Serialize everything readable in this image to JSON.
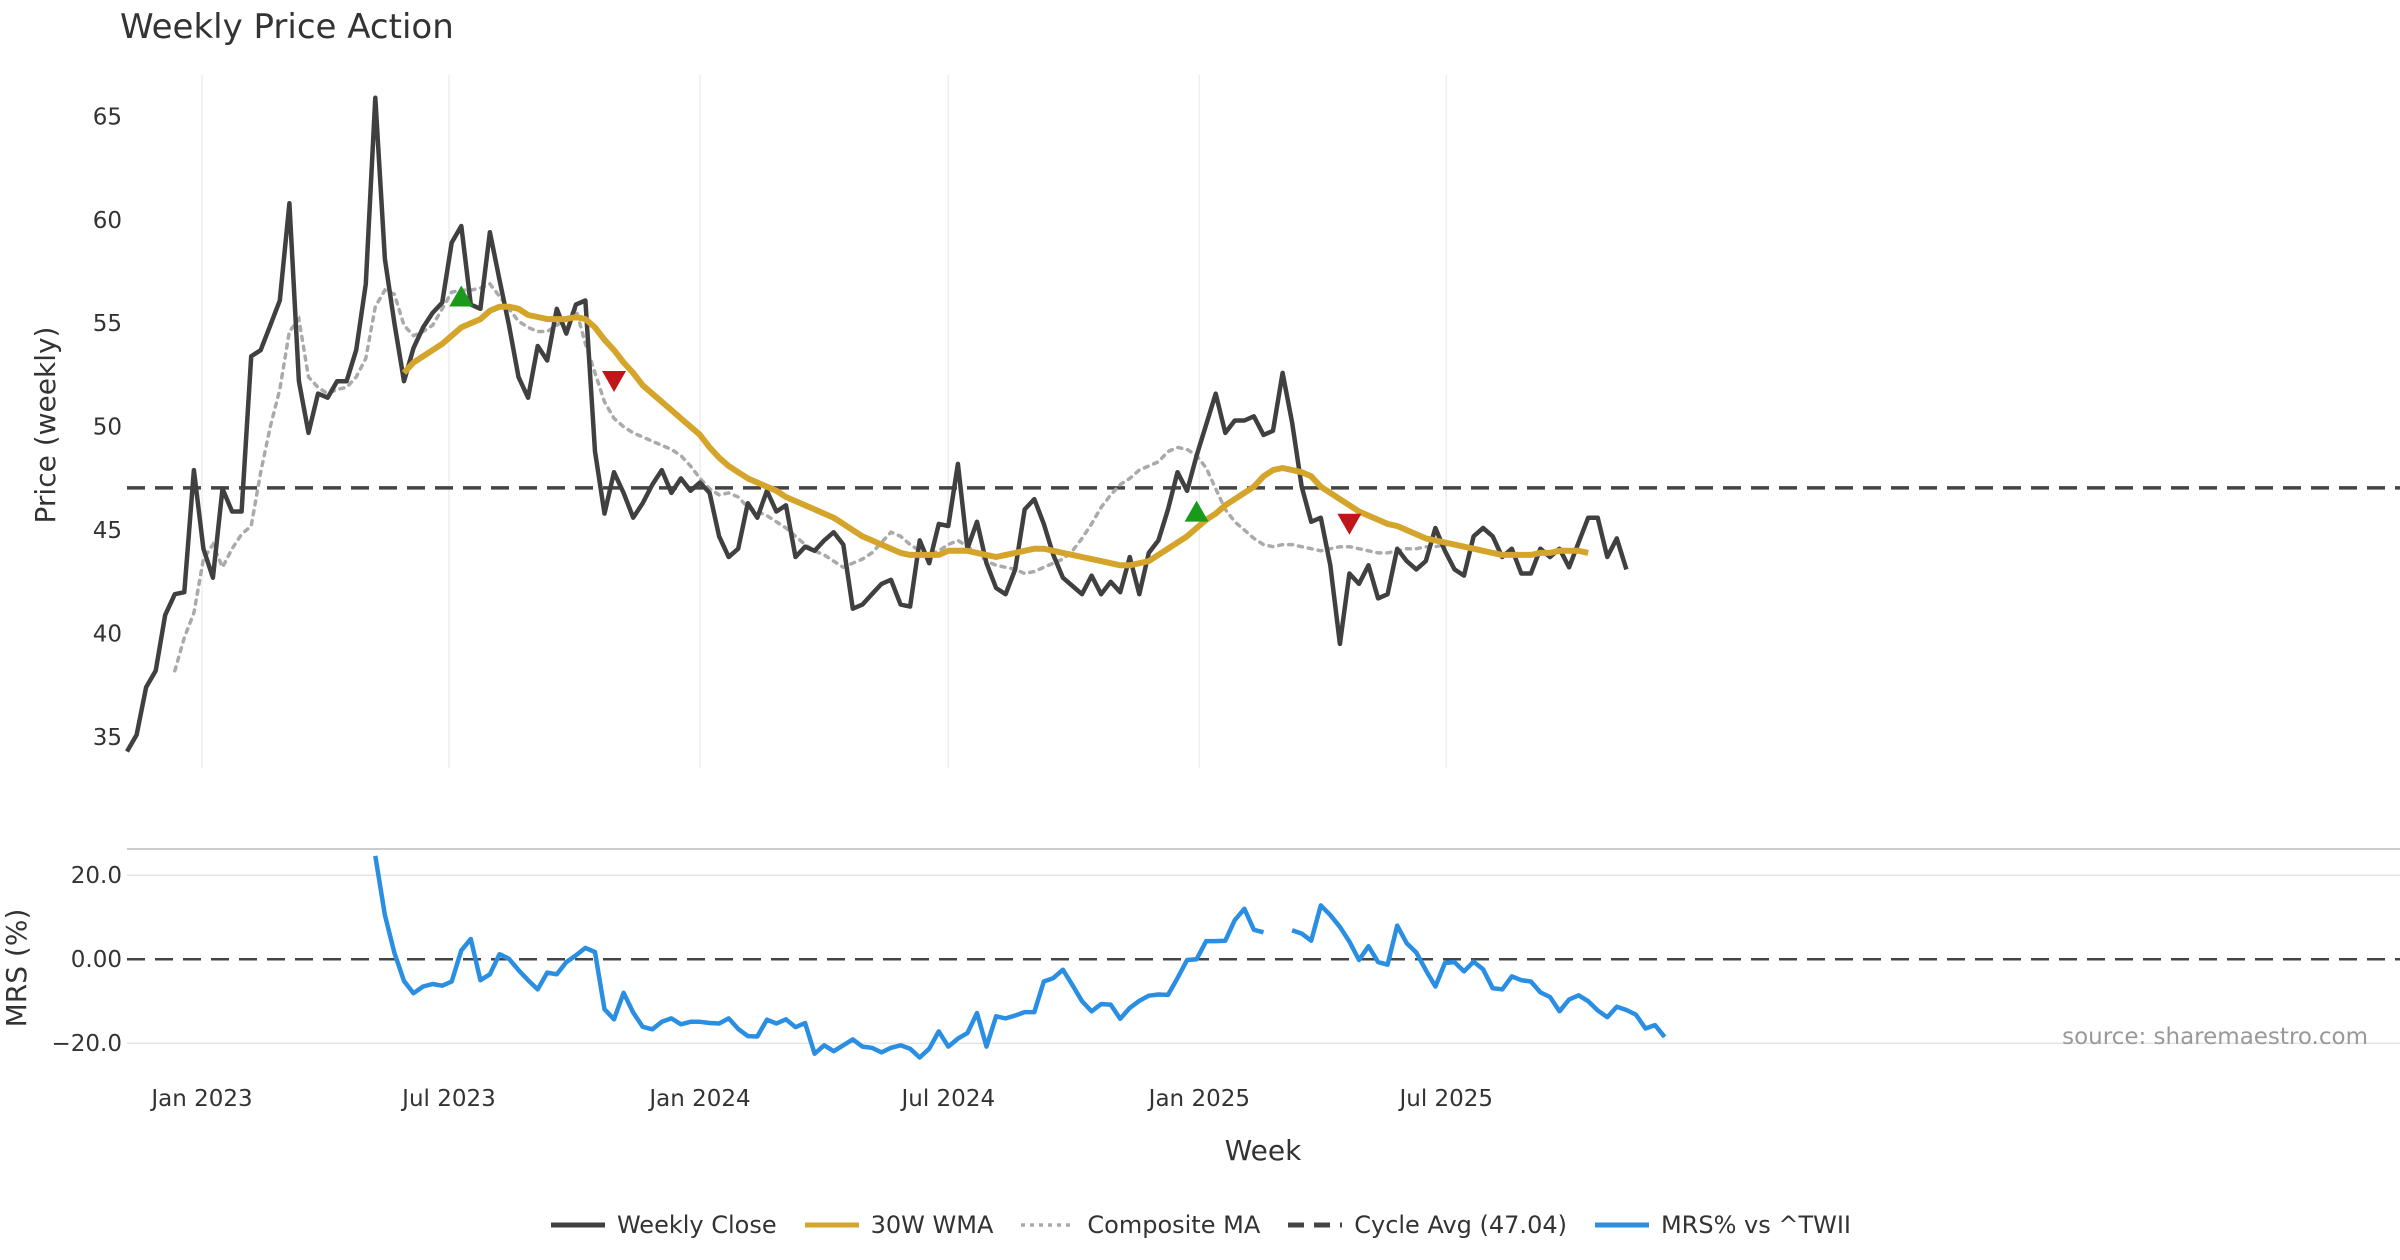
{
  "chart_data": [
    {
      "type": "line",
      "title": "Weekly Price Action",
      "xlabel": "",
      "ylabel": "Price (weekly)",
      "ylim": [
        33.5,
        67
      ],
      "yticks": [
        35,
        40,
        45,
        50,
        55,
        60,
        65
      ],
      "x_start": "2022-11-07",
      "x_step_weeks": 1,
      "cycle_avg": 47.04,
      "series": [
        {
          "name": "Weekly Close",
          "color": "#404040",
          "start_index": 0,
          "values": [
            34.3,
            35.1,
            37.4,
            38.2,
            40.9,
            41.9,
            42.0,
            47.9,
            44.1,
            42.7,
            47.0,
            45.9,
            45.9,
            53.4,
            53.7,
            54.9,
            56.1,
            60.8,
            52.2,
            49.7,
            51.6,
            51.4,
            52.2,
            52.2,
            53.7,
            56.9,
            65.9,
            58.1,
            55.0,
            52.2,
            53.8,
            54.8,
            55.5,
            56.0,
            58.9,
            59.7,
            55.9,
            55.7,
            59.4,
            57.1,
            54.9,
            52.4,
            51.4,
            53.9,
            53.2,
            55.7,
            54.5,
            55.9,
            56.1,
            48.8,
            45.8,
            47.8,
            46.8,
            45.6,
            46.3,
            47.2,
            47.9,
            46.8,
            47.5,
            46.9,
            47.3,
            46.8,
            44.7,
            43.7,
            44.1,
            46.3,
            45.6,
            46.9,
            45.9,
            46.2,
            43.7,
            44.2,
            44.0,
            44.5,
            44.9,
            44.3,
            41.2,
            41.4,
            41.9,
            42.4,
            42.6,
            41.4,
            41.3,
            44.5,
            43.4,
            45.3,
            45.2,
            48.2,
            44.1,
            45.4,
            43.4,
            42.2,
            41.9,
            43.1,
            46.0,
            46.5,
            45.3,
            43.8,
            42.7,
            42.3,
            41.9,
            42.8,
            41.9,
            42.5,
            42.0,
            43.7,
            41.9,
            43.9,
            44.5,
            46.0,
            47.8,
            46.9,
            48.6,
            50.1,
            51.6,
            49.7,
            50.3,
            50.3,
            50.5,
            49.6,
            49.8,
            52.6,
            50.2,
            47.1,
            45.4,
            45.6,
            43.3,
            39.5,
            42.9,
            42.4,
            43.3,
            41.7,
            41.9,
            44.1,
            43.5,
            43.1,
            43.5,
            45.1,
            44.0,
            43.1,
            42.8,
            44.7,
            45.1,
            44.7,
            43.7,
            44.1,
            42.9,
            42.9,
            44.1,
            43.7,
            44.1,
            43.2,
            44.4,
            45.6,
            45.6,
            43.7,
            44.6,
            43.1
          ]
        },
        {
          "name": "30W WMA",
          "color": "#d4a52a",
          "start_index": 29,
          "values": [
            52.6,
            53.1,
            53.4,
            53.7,
            54.0,
            54.4,
            54.8,
            55.0,
            55.2,
            55.6,
            55.8,
            55.8,
            55.7,
            55.4,
            55.3,
            55.2,
            55.2,
            55.2,
            55.3,
            55.2,
            54.8,
            54.2,
            53.7,
            53.1,
            52.6,
            52.0,
            51.6,
            51.2,
            50.8,
            50.4,
            50.0,
            49.6,
            49.0,
            48.5,
            48.1,
            47.8,
            47.5,
            47.3,
            47.1,
            46.9,
            46.6,
            46.4,
            46.2,
            46.0,
            45.8,
            45.6,
            45.3,
            45.0,
            44.7,
            44.5,
            44.3,
            44.1,
            43.9,
            43.8,
            43.8,
            43.8,
            43.8,
            44.0,
            44.0,
            44.0,
            43.9,
            43.8,
            43.7,
            43.8,
            43.9,
            44.0,
            44.1,
            44.1,
            44.0,
            43.9,
            43.8,
            43.7,
            43.6,
            43.5,
            43.4,
            43.3,
            43.3,
            43.4,
            43.5,
            43.8,
            44.1,
            44.4,
            44.7,
            45.1,
            45.5,
            45.8,
            46.2,
            46.5,
            46.8,
            47.1,
            47.6,
            47.9,
            48.0,
            47.9,
            47.8,
            47.6,
            47.1,
            46.8,
            46.5,
            46.2,
            45.9,
            45.7,
            45.5,
            45.3,
            45.2,
            45.0,
            44.8,
            44.6,
            44.5,
            44.4,
            44.3,
            44.2,
            44.1,
            44.0,
            43.9,
            43.8,
            43.8,
            43.8,
            43.8,
            43.9,
            43.9,
            44.0,
            44.0,
            44.0,
            43.9
          ]
        },
        {
          "name": "Composite MA",
          "color": "#aaaaaa",
          "start_index": 5,
          "values": [
            38.2,
            39.8,
            41.0,
            43.6,
            44.3,
            43.2,
            44.1,
            44.8,
            45.2,
            47.8,
            50.0,
            51.8,
            54.6,
            55.2,
            52.4,
            51.9,
            51.6,
            51.8,
            51.9,
            52.4,
            53.3,
            55.8,
            56.6,
            56.4,
            54.9,
            54.4,
            54.6,
            54.9,
            55.7,
            56.5,
            56.6,
            56.6,
            56.7,
            56.9,
            56.3,
            55.7,
            55.1,
            54.8,
            54.6,
            54.6,
            54.9,
            55.2,
            55.7,
            54.0,
            52.6,
            51.2,
            50.4,
            50.0,
            49.7,
            49.5,
            49.3,
            49.1,
            48.9,
            48.6,
            48.1,
            47.5,
            47.0,
            46.7,
            46.8,
            46.6,
            46.1,
            45.9,
            45.7,
            45.4,
            45.1,
            44.7,
            44.3,
            44.0,
            43.8,
            43.5,
            43.2,
            43.4,
            43.6,
            43.9,
            44.4,
            44.9,
            44.7,
            44.3,
            44.0,
            43.8,
            44.0,
            44.3,
            44.5,
            44.2,
            43.9,
            43.5,
            43.3,
            43.2,
            43.1,
            42.9,
            43.0,
            43.2,
            43.4,
            43.6,
            44.0,
            44.6,
            45.3,
            46.1,
            46.7,
            47.2,
            47.5,
            47.9,
            48.1,
            48.3,
            48.8,
            49.0,
            48.9,
            48.6,
            48.0,
            47.0,
            46.0,
            45.4,
            45.0,
            44.6,
            44.3,
            44.2,
            44.3,
            44.3,
            44.2,
            44.1,
            44.0,
            44.1,
            44.2,
            44.2,
            44.1,
            44.0,
            43.9,
            43.9,
            44.0,
            44.1,
            44.1,
            44.2,
            44.2,
            44.3,
            44.3
          ]
        },
        {
          "name": "Cycle Avg (47.04)",
          "color": "#444444",
          "value": 47.04,
          "style": "dashed"
        }
      ],
      "markers": [
        {
          "type": "buy",
          "index": 35,
          "value": 56.3,
          "color": "#1a9a1a"
        },
        {
          "type": "sell",
          "index": 51,
          "value": 52.2,
          "color": "#c0161a"
        },
        {
          "type": "buy",
          "index": 112,
          "value": 45.9,
          "color": "#1a9a1a"
        },
        {
          "type": "sell",
          "index": 128,
          "value": 45.3,
          "color": "#c0161a"
        }
      ]
    },
    {
      "type": "line",
      "title": "",
      "xlabel": "Week",
      "ylabel": "MRS (%)",
      "ylim": [
        -24,
        26
      ],
      "yticks": [
        20.0,
        0.0,
        -20.0
      ],
      "ytick_labels": [
        "20.0",
        "0.00",
        "−20.0"
      ],
      "x_tick_labels": [
        "Jan 2023",
        "Jul 2023",
        "Jan 2024",
        "Jul 2024",
        "Jan 2025",
        "Jul 2025"
      ],
      "x_tick_dates": [
        "2023-01-01",
        "2023-07-01",
        "2024-01-01",
        "2024-07-01",
        "2025-01-01",
        "2025-07-01"
      ],
      "series": [
        {
          "name": "MRS% vs ^TWII",
          "color": "#2a8ee2",
          "start_index": 26,
          "values": [
            24.6,
            10.5,
            1.5,
            -5.2,
            -8.1,
            -6.5,
            -5.9,
            -6.3,
            -5.3,
            2.1,
            4.8,
            -5.0,
            -3.6,
            1.2,
            0.1,
            -2.6,
            -5.0,
            -7.2,
            -3.2,
            -3.6,
            -0.7,
            0.9,
            2.7,
            1.7,
            -11.9,
            -14.3,
            -8.0,
            -12.7,
            -16.1,
            -16.7,
            -14.9,
            -14.1,
            -15.5,
            -14.9,
            -14.9,
            -15.2,
            -15.3,
            -14.1,
            -16.6,
            -18.3,
            -18.4,
            -14.4,
            -15.3,
            -14.3,
            -16.2,
            -15.2,
            -22.5,
            -20.5,
            -21.9,
            -20.5,
            -19.1,
            -20.8,
            -21.1,
            -22.2,
            -21.1,
            -20.5,
            -21.3,
            -23.4,
            -21.3,
            -17.2,
            -20.8,
            -18.9,
            -17.6,
            -12.8,
            -20.8,
            -13.6,
            -14.1,
            -13.4,
            -12.6,
            -12.6,
            -5.3,
            -4.5,
            -2.5,
            -6.2,
            -10.0,
            -12.4,
            -10.7,
            -10.8,
            -14.2,
            -11.6,
            -9.9,
            -8.7,
            -8.4,
            -8.5,
            -4.5,
            -0.2,
            0.0,
            4.3,
            4.3,
            4.4,
            9.3,
            12.0,
            7.0,
            6.4,
            null,
            null,
            6.9,
            6.1,
            4.4,
            12.8,
            10.5,
            7.7,
            4.2,
            -0.2,
            3.1,
            -0.7,
            -1.3,
            8.0,
            3.8,
            1.6,
            -2.6,
            -6.5,
            -0.9,
            -0.7,
            -2.9,
            -0.6,
            -2.4,
            -6.9,
            -7.2,
            -4.1,
            -5.0,
            -5.3,
            -7.9,
            -9.0,
            -12.4,
            -9.6,
            -8.6,
            -10.0,
            -12.2,
            -13.8,
            -11.3,
            -12.1,
            -13.2,
            -16.5,
            -15.7,
            -18.5
          ]
        }
      ],
      "zero_line": {
        "value": 0,
        "style": "dashed"
      }
    }
  ],
  "source_text": "source: sharemaestro.com",
  "legend": [
    {
      "label": "Weekly Close",
      "color": "#404040",
      "style": "solid"
    },
    {
      "label": "30W WMA",
      "color": "#d4a52a",
      "style": "solid"
    },
    {
      "label": "Composite MA",
      "color": "#aaaaaa",
      "style": "dotted"
    },
    {
      "label": "Cycle Avg (47.04)",
      "color": "#444444",
      "style": "dashed"
    },
    {
      "label": "MRS% vs ^TWII",
      "color": "#2a8ee2",
      "style": "solid"
    }
  ]
}
